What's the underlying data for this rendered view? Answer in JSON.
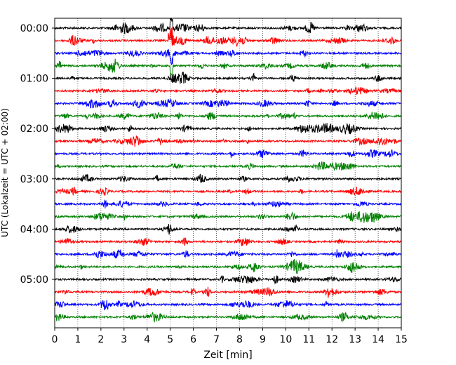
{
  "chart_data": {
    "type": "line",
    "title": "",
    "xlabel": "Zeit  [min]",
    "ylabel": "UTC (Lokalzeit = UTC + 02:00)",
    "xlim": [
      0,
      15
    ],
    "x_ticks": [
      "0",
      "1",
      "2",
      "3",
      "4",
      "5",
      "6",
      "7",
      "8",
      "9",
      "10",
      "11",
      "12",
      "13",
      "14",
      "15"
    ],
    "y_ticks": [
      "00:00",
      "01:00",
      "02:00",
      "03:00",
      "04:00",
      "05:00"
    ],
    "y_tick_rows": [
      0,
      4,
      8,
      12,
      16,
      20
    ],
    "row_interval_minutes": 15,
    "row_count": 24,
    "color_cycle": [
      "#000000",
      "#ff0000",
      "#0000ff",
      "#008000"
    ],
    "grid": "vertical dotted lines at each minute",
    "event": {
      "row": 1,
      "minute": 5.05,
      "description": "large red spike"
    },
    "legend": "none"
  }
}
